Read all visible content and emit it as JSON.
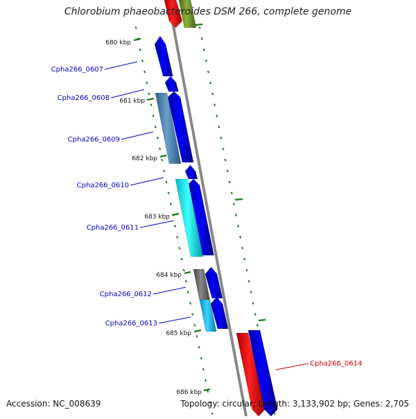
{
  "title": "Chlorobium phaeobacteroides DSM 266, complete genome",
  "footer": {
    "accession": "Accession: NC_008639",
    "summary": "Topology: circular; Length: 3,133,902 bp; Genes: 2,705"
  },
  "ticks": [
    {
      "label": "680 kbp"
    },
    {
      "label": "681 kbp"
    },
    {
      "label": "682 kbp"
    },
    {
      "label": "683 kbp"
    },
    {
      "label": "684 kbp"
    },
    {
      "label": "685 kbp"
    },
    {
      "label": "686 kbp"
    }
  ],
  "gene_labels": [
    {
      "text": "Cpha266_0607",
      "color": "#0000cc"
    },
    {
      "text": "Cpha266_0608",
      "color": "#0000cc"
    },
    {
      "text": "Cpha266_0609",
      "color": "#0000cc"
    },
    {
      "text": "Cpha266_0610",
      "color": "#0000cc"
    },
    {
      "text": "Cpha266_0611",
      "color": "#0000cc"
    },
    {
      "text": "Cpha266_0612",
      "color": "#0000cc"
    },
    {
      "text": "Cpha266_0613",
      "color": "#0000cc"
    },
    {
      "text": "Cpha266_0614",
      "color": "#cc0000"
    }
  ],
  "colors": {
    "cds_blue": "#0000ee",
    "cds_red": "#ff0000",
    "cds_olive": "#6b8e23",
    "steelblue": "#4682b4",
    "cyan": "#00e5ee",
    "skyblue": "#00bfff",
    "gray": "#666666",
    "backbone": "#888888",
    "tick": "#1a7a1a"
  }
}
